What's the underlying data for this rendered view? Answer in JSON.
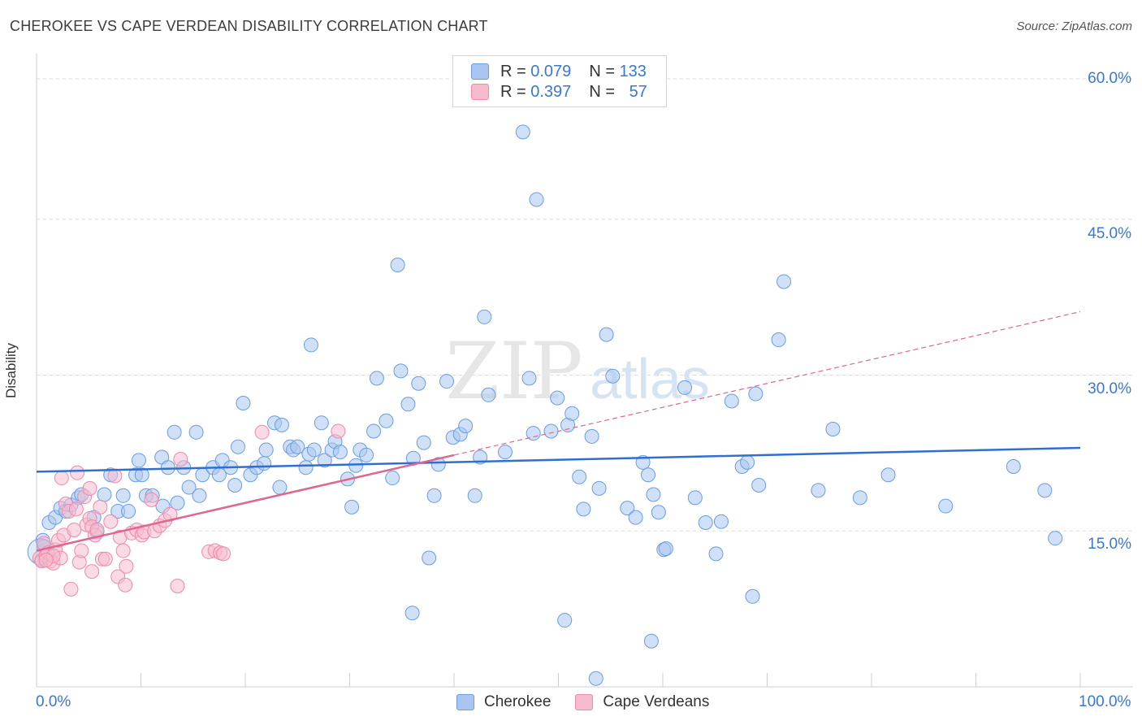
{
  "header": {
    "title": "CHEROKEE VS CAPE VERDEAN DISABILITY CORRELATION CHART",
    "source": "Source: ZipAtlas.com"
  },
  "watermark": {
    "zip": "ZIP",
    "atlas": "atlas"
  },
  "legend": {
    "rows": [
      {
        "r_label": "R = ",
        "r_value": "0.079",
        "n_label": "N = ",
        "n_value": "133",
        "color": "#aac6f0"
      },
      {
        "r_label": "R = ",
        "r_value": "0.397",
        "n_label": "N = ",
        "n_value": "57",
        "color": "#f6bccd"
      }
    ]
  },
  "axes": {
    "ylabel": "Disability",
    "x_ticks": [
      "0.0%",
      "100.0%"
    ],
    "y_ticks": [
      "60.0%",
      "45.0%",
      "30.0%",
      "15.0%"
    ]
  },
  "chart_data": {
    "type": "scatter",
    "xlabel": "",
    "ylabel": "Disability",
    "xlim": [
      0,
      100
    ],
    "ylim": [
      0,
      60
    ],
    "y_gridlines": [
      15,
      30,
      45,
      60
    ],
    "legend_position": "top-center",
    "series": [
      {
        "name": "Cherokee",
        "color": "#6a9de0",
        "fill": "#aac6f0",
        "trend": {
          "x": [
            0,
            100
          ],
          "y": [
            20.7,
            23.0
          ],
          "style": "solid",
          "color": "#2f6fcf"
        },
        "points": [
          [
            0.5,
            12.2
          ],
          [
            0.6,
            14.1
          ],
          [
            0.7,
            13.5
          ],
          [
            1.2,
            15.8
          ],
          [
            1.8,
            16.3
          ],
          [
            2.3,
            17.2
          ],
          [
            2.8,
            16.9
          ],
          [
            3.3,
            17.5
          ],
          [
            4,
            18.2
          ],
          [
            4.3,
            18.5
          ],
          [
            5.5,
            16.3
          ],
          [
            5.8,
            14.9
          ],
          [
            6.5,
            18.5
          ],
          [
            7.1,
            20.4
          ],
          [
            7.8,
            16.9
          ],
          [
            8.3,
            18.4
          ],
          [
            8.8,
            16.9
          ],
          [
            9.5,
            20.4
          ],
          [
            9.8,
            21.8
          ],
          [
            10.1,
            20.4
          ],
          [
            10.5,
            18.4
          ],
          [
            11.1,
            18.4
          ],
          [
            12.0,
            22.1
          ],
          [
            12.1,
            17.4
          ],
          [
            12.6,
            21.1
          ],
          [
            13.5,
            17.7
          ],
          [
            14.1,
            21.1
          ],
          [
            14.6,
            19.2
          ],
          [
            13.2,
            24.5
          ],
          [
            15.6,
            18.4
          ],
          [
            15.9,
            20.4
          ],
          [
            15.3,
            24.5
          ],
          [
            16.9,
            21.1
          ],
          [
            17.8,
            21.8
          ],
          [
            17.5,
            20.4
          ],
          [
            18.6,
            21.1
          ],
          [
            19.0,
            19.4
          ],
          [
            19.3,
            23.1
          ],
          [
            19.8,
            27.3
          ],
          [
            20.5,
            20.4
          ],
          [
            21.1,
            21.1
          ],
          [
            21.8,
            21.5
          ],
          [
            22.0,
            22.8
          ],
          [
            22.8,
            25.4
          ],
          [
            23.3,
            19.2
          ],
          [
            23.5,
            25.2
          ],
          [
            24.3,
            23.1
          ],
          [
            24.6,
            22.8
          ],
          [
            25.0,
            23.1
          ],
          [
            25.8,
            21.1
          ],
          [
            26.1,
            22.4
          ],
          [
            26.6,
            22.8
          ],
          [
            27.3,
            25.4
          ],
          [
            27.6,
            21.8
          ],
          [
            28.3,
            22.8
          ],
          [
            28.6,
            23.6
          ],
          [
            29.1,
            22.6
          ],
          [
            29.8,
            20.0
          ],
          [
            30.2,
            17.3
          ],
          [
            30.6,
            21.3
          ],
          [
            31.0,
            22.8
          ],
          [
            31.6,
            22.3
          ],
          [
            32.3,
            24.6
          ],
          [
            32.6,
            29.7
          ],
          [
            33.5,
            25.6
          ],
          [
            34.1,
            20.1
          ],
          [
            34.6,
            40.6
          ],
          [
            34.9,
            30.4
          ],
          [
            35.6,
            27.2
          ],
          [
            36.1,
            22.0
          ],
          [
            36.6,
            29.2
          ],
          [
            37.1,
            23.5
          ],
          [
            38.1,
            18.4
          ],
          [
            38.5,
            21.4
          ],
          [
            39.3,
            29.4
          ],
          [
            39.9,
            24.0
          ],
          [
            40.6,
            24.3
          ],
          [
            41.1,
            25.1
          ],
          [
            42.0,
            18.4
          ],
          [
            42.5,
            22.1
          ],
          [
            42.9,
            35.6
          ],
          [
            43.3,
            28.1
          ],
          [
            44.9,
            22.6
          ],
          [
            46.6,
            53.4
          ],
          [
            47.2,
            29.7
          ],
          [
            47.6,
            24.4
          ],
          [
            47.9,
            46.9
          ],
          [
            49.3,
            24.6
          ],
          [
            49.9,
            27.8
          ],
          [
            50.9,
            25.2
          ],
          [
            51.3,
            26.3
          ],
          [
            52.0,
            20.2
          ],
          [
            52.4,
            17.1
          ],
          [
            53.2,
            24.1
          ],
          [
            53.9,
            19.1
          ],
          [
            54.6,
            33.9
          ],
          [
            55.2,
            29.9
          ],
          [
            56.6,
            17.2
          ],
          [
            57.4,
            16.3
          ],
          [
            58.1,
            21.6
          ],
          [
            58.6,
            20.4
          ],
          [
            59.1,
            18.5
          ],
          [
            59.6,
            16.8
          ],
          [
            60.1,
            13.2
          ],
          [
            60.3,
            13.3
          ],
          [
            62.1,
            28.8
          ],
          [
            63.1,
            18.2
          ],
          [
            64.1,
            15.8
          ],
          [
            65.1,
            12.8
          ],
          [
            65.6,
            15.9
          ],
          [
            66.6,
            27.5
          ],
          [
            67.6,
            21.2
          ],
          [
            68.1,
            21.6
          ],
          [
            68.6,
            8.7
          ],
          [
            68.9,
            28.2
          ],
          [
            69.2,
            19.4
          ],
          [
            71.1,
            33.4
          ],
          [
            71.6,
            39.0
          ],
          [
            74.9,
            18.9
          ],
          [
            76.3,
            24.8
          ],
          [
            78.9,
            18.2
          ],
          [
            81.6,
            20.4
          ],
          [
            87.1,
            17.4
          ],
          [
            93.6,
            21.2
          ],
          [
            96.6,
            18.9
          ],
          [
            97.6,
            14.3
          ],
          [
            26.3,
            32.9
          ],
          [
            36.0,
            7.1
          ],
          [
            50.6,
            6.4
          ],
          [
            58.9,
            4.4
          ],
          [
            53.6,
            0.8
          ],
          [
            37.6,
            12.4
          ]
        ]
      },
      {
        "name": "Cape Verdeans",
        "color": "#ee8aaa",
        "fill": "#f6bccd",
        "trend": {
          "x": [
            0,
            100
          ],
          "y": [
            13.1,
            36.1
          ],
          "solid_until": 40,
          "style": "solid-then-dashed",
          "color": "#e0658f"
        },
        "points": [
          [
            0.3,
            12.4
          ],
          [
            0.5,
            12.1
          ],
          [
            0.7,
            13.8
          ],
          [
            0.9,
            12.6
          ],
          [
            1.1,
            12.9
          ],
          [
            1.3,
            12.1
          ],
          [
            1.6,
            11.9
          ],
          [
            1.8,
            13.2
          ],
          [
            2.1,
            14.1
          ],
          [
            2.3,
            12.4
          ],
          [
            2.4,
            20.1
          ],
          [
            2.6,
            14.6
          ],
          [
            2.8,
            17.6
          ],
          [
            3.1,
            16.9
          ],
          [
            3.3,
            9.4
          ],
          [
            3.6,
            15.1
          ],
          [
            3.8,
            17.1
          ],
          [
            3.9,
            20.6
          ],
          [
            4.1,
            12.0
          ],
          [
            4.3,
            13.1
          ],
          [
            4.6,
            18.3
          ],
          [
            4.8,
            15.6
          ],
          [
            5.1,
            16.2
          ],
          [
            5.1,
            19.1
          ],
          [
            5.3,
            15.4
          ],
          [
            5.6,
            14.6
          ],
          [
            5.3,
            11.1
          ],
          [
            5.8,
            15.1
          ],
          [
            6.1,
            17.3
          ],
          [
            6.3,
            12.3
          ],
          [
            6.6,
            12.3
          ],
          [
            7.1,
            15.9
          ],
          [
            7.5,
            20.3
          ],
          [
            7.8,
            10.6
          ],
          [
            8.0,
            14.4
          ],
          [
            8.3,
            13.1
          ],
          [
            8.5,
            9.8
          ],
          [
            8.6,
            11.6
          ],
          [
            9.1,
            14.8
          ],
          [
            9.6,
            15.1
          ],
          [
            10.1,
            14.6
          ],
          [
            10.3,
            14.9
          ],
          [
            11.0,
            18.0
          ],
          [
            11.3,
            15.0
          ],
          [
            11.8,
            15.5
          ],
          [
            12.3,
            16.0
          ],
          [
            12.8,
            16.6
          ],
          [
            13.5,
            9.7
          ],
          [
            13.8,
            21.9
          ],
          [
            16.5,
            13.0
          ],
          [
            17.1,
            13.1
          ],
          [
            17.6,
            12.9
          ],
          [
            17.9,
            12.8
          ],
          [
            21.6,
            24.5
          ],
          [
            28.9,
            24.6
          ],
          [
            1.6,
            12.6
          ],
          [
            0.9,
            12.2
          ]
        ]
      }
    ]
  },
  "bottom_legend": [
    {
      "label": "Cherokee",
      "color": "#aac6f0"
    },
    {
      "label": "Cape Verdeans",
      "color": "#f6bccd"
    }
  ]
}
